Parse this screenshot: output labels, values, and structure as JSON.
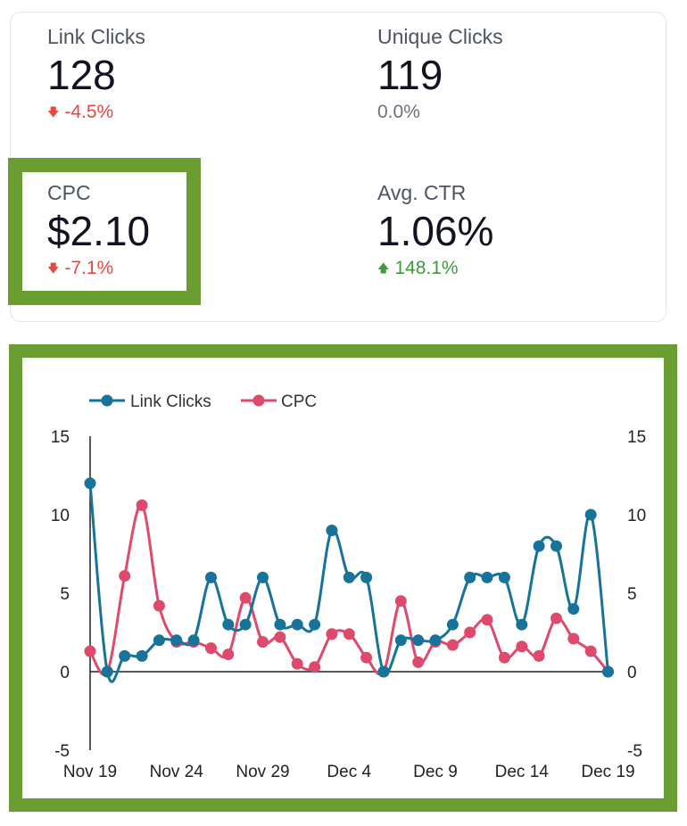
{
  "kpis": {
    "link_clicks": {
      "label": "Link Clicks",
      "value": "128",
      "change": "-4.5%",
      "direction": "down"
    },
    "unique_clicks": {
      "label": "Unique Clicks",
      "value": "119",
      "change": "0.0%",
      "direction": "flat"
    },
    "cpc": {
      "label": "CPC",
      "value": "$2.10",
      "change": "-7.1%",
      "direction": "down"
    },
    "avg_ctr": {
      "label": "Avg. CTR",
      "value": "1.06%",
      "change": "148.1%",
      "direction": "up"
    }
  },
  "colors": {
    "accent_green": "#6a9d2f",
    "link_clicks": "#17739a",
    "cpc": "#dd4a6c",
    "negative": "#e8473e",
    "positive": "#3e9a3e"
  },
  "chart_data": {
    "type": "line",
    "legend_position": "top-left",
    "x_tick_labels": [
      "Nov 19",
      "Nov 24",
      "Nov 29",
      "Dec 4",
      "Dec 9",
      "Dec 14",
      "Dec 19"
    ],
    "y_ticks": [
      15,
      10,
      5,
      0,
      -5
    ],
    "ylim": [
      -5,
      15
    ],
    "ylim_right": [
      -5,
      15
    ],
    "series": [
      {
        "name": "Link Clicks",
        "axis": "left",
        "values": [
          12,
          0,
          1,
          1,
          2,
          2,
          2,
          6,
          3,
          3,
          6,
          3,
          3,
          3,
          9,
          6,
          6,
          0,
          2,
          2,
          2,
          3,
          6,
          6,
          6,
          3,
          8,
          8,
          4,
          10,
          0
        ]
      },
      {
        "name": "CPC",
        "axis": "right",
        "values": [
          1.3,
          0,
          6.1,
          10.6,
          4.2,
          1.9,
          1.9,
          1.5,
          1.1,
          4.7,
          1.9,
          2.2,
          0.5,
          0.3,
          2.4,
          2.4,
          0.9,
          0,
          4.5,
          0.6,
          1.9,
          1.7,
          2.5,
          3.3,
          0.9,
          1.6,
          1.0,
          3.4,
          2.1,
          1.3,
          0
        ]
      }
    ]
  }
}
